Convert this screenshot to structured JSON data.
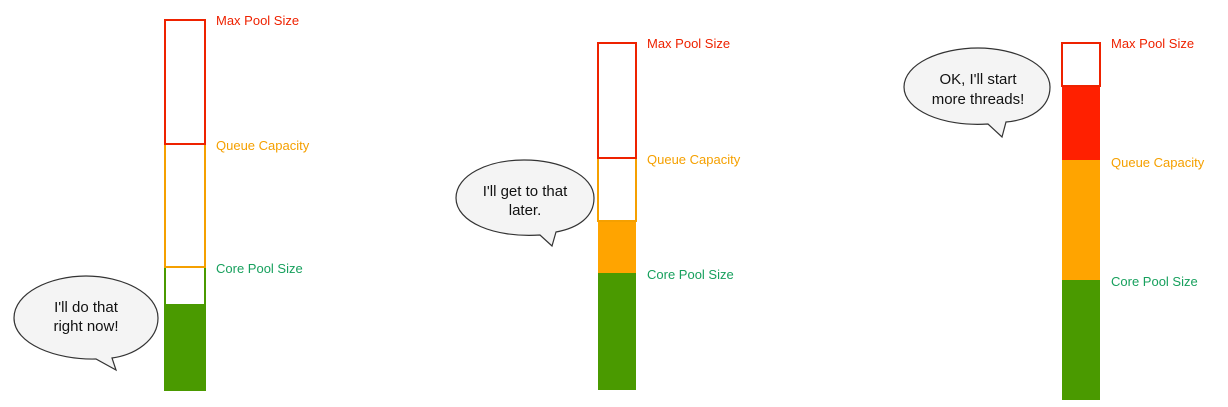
{
  "colors": {
    "max": "#ee2200",
    "queue": "#f5a000",
    "core": "#4a9a00",
    "queue_fill": "#ffa400",
    "max_fill": "#ff2000",
    "core_label": "#17a05d"
  },
  "panels": [
    {
      "labels": {
        "max": "Max Pool Size",
        "queue": "Queue Capacity",
        "core": "Core Pool Size"
      },
      "bubble": {
        "line1": "I'll do that",
        "line2": "right now!"
      }
    },
    {
      "labels": {
        "max": "Max Pool Size",
        "queue": "Queue Capacity",
        "core": "Core Pool Size"
      },
      "bubble": {
        "line1": "I'll get to that",
        "line2": "later."
      }
    },
    {
      "labels": {
        "max": "Max Pool Size",
        "queue": "Queue Capacity",
        "core": "Core Pool Size"
      },
      "bubble": {
        "line1": "OK, I'll start",
        "line2": "more threads!"
      }
    }
  ]
}
